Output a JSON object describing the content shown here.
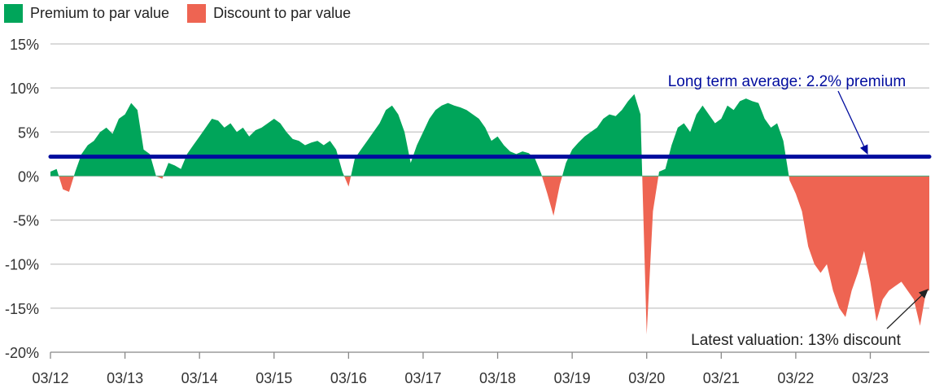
{
  "chart_data": {
    "type": "area",
    "legend": {
      "position": "top-left",
      "items": [
        {
          "label": "Premium to par value",
          "color": "#00A55A"
        },
        {
          "label": "Discount to par value",
          "color": "#EE6452"
        }
      ]
    },
    "ylim": [
      -20,
      15
    ],
    "yticks": [
      15,
      10,
      5,
      0,
      -5,
      -10,
      -15,
      -20
    ],
    "ytick_labels": [
      "15%",
      "10%",
      "5%",
      "0%",
      "-5%",
      "-10%",
      "-15%",
      "-20%"
    ],
    "xtick_labels": [
      "03/12",
      "03/13",
      "03/14",
      "03/15",
      "03/16",
      "03/17",
      "03/18",
      "03/19",
      "03/20",
      "03/21",
      "03/22",
      "03/23"
    ],
    "grid": true,
    "average": {
      "value": 2.2,
      "label": "Long term average: 2.2% premium",
      "color": "#000C9E"
    },
    "latest_annotation": "Latest valuation: 13% discount",
    "x": [
      "2012-03",
      "2012-04",
      "2012-05",
      "2012-06",
      "2012-07",
      "2012-08",
      "2012-09",
      "2012-10",
      "2012-11",
      "2012-12",
      "2013-01",
      "2013-02",
      "2013-03",
      "2013-04",
      "2013-05",
      "2013-06",
      "2013-07",
      "2013-08",
      "2013-09",
      "2013-10",
      "2013-11",
      "2013-12",
      "2014-01",
      "2014-02",
      "2014-03",
      "2014-04",
      "2014-05",
      "2014-06",
      "2014-07",
      "2014-08",
      "2014-09",
      "2014-10",
      "2014-11",
      "2014-12",
      "2015-01",
      "2015-02",
      "2015-03",
      "2015-04",
      "2015-05",
      "2015-06",
      "2015-07",
      "2015-08",
      "2015-09",
      "2015-10",
      "2015-11",
      "2015-12",
      "2016-01",
      "2016-02",
      "2016-03",
      "2016-04",
      "2016-05",
      "2016-06",
      "2016-07",
      "2016-08",
      "2016-09",
      "2016-10",
      "2016-11",
      "2016-12",
      "2017-01",
      "2017-02",
      "2017-03",
      "2017-04",
      "2017-05",
      "2017-06",
      "2017-07",
      "2017-08",
      "2017-09",
      "2017-10",
      "2017-11",
      "2017-12",
      "2018-01",
      "2018-02",
      "2018-03",
      "2018-04",
      "2018-05",
      "2018-06",
      "2018-07",
      "2018-08",
      "2018-09",
      "2018-10",
      "2018-11",
      "2018-12",
      "2019-01",
      "2019-02",
      "2019-03",
      "2019-04",
      "2019-05",
      "2019-06",
      "2019-07",
      "2019-08",
      "2019-09",
      "2019-10",
      "2019-11",
      "2019-12",
      "2020-01",
      "2020-02",
      "2020-03",
      "2020-04",
      "2020-05",
      "2020-06",
      "2020-07",
      "2020-08",
      "2020-09",
      "2020-10",
      "2020-11",
      "2020-12",
      "2021-01",
      "2021-02",
      "2021-03",
      "2021-04",
      "2021-05",
      "2021-06",
      "2021-07",
      "2021-08",
      "2021-09",
      "2021-10",
      "2021-11",
      "2021-12",
      "2022-01",
      "2022-02",
      "2022-03",
      "2022-04",
      "2022-05",
      "2022-06",
      "2022-07",
      "2022-08",
      "2022-09",
      "2022-10",
      "2022-11",
      "2022-12",
      "2023-01",
      "2023-02",
      "2023-03",
      "2023-04",
      "2023-05",
      "2023-06",
      "2023-07",
      "2023-08",
      "2023-09",
      "2023-10",
      "2023-11",
      "2023-12"
    ],
    "values": [
      0.5,
      0.8,
      -1.5,
      -1.8,
      0.5,
      2.5,
      3.5,
      4.0,
      5.0,
      5.5,
      4.8,
      6.5,
      7.0,
      8.3,
      7.5,
      3.0,
      2.5,
      0.0,
      -0.3,
      1.5,
      1.2,
      0.8,
      2.5,
      3.5,
      4.5,
      5.5,
      6.5,
      6.3,
      5.5,
      6.0,
      5.0,
      5.5,
      4.5,
      5.2,
      5.5,
      6.0,
      6.5,
      6.0,
      5.0,
      4.2,
      4.0,
      3.5,
      3.8,
      4.0,
      3.5,
      4.0,
      3.0,
      0.5,
      -1.2,
      2.0,
      3.0,
      4.0,
      5.0,
      6.0,
      7.5,
      8.0,
      7.0,
      5.0,
      1.5,
      3.5,
      5.0,
      6.5,
      7.5,
      8.0,
      8.3,
      8.0,
      7.8,
      7.5,
      7.0,
      6.5,
      5.5,
      4.0,
      4.5,
      3.5,
      2.8,
      2.5,
      2.8,
      2.6,
      2.0,
      0.3,
      -2.0,
      -4.5,
      -1.0,
      1.5,
      3.0,
      3.8,
      4.5,
      5.0,
      5.5,
      6.5,
      7.0,
      6.8,
      7.5,
      8.5,
      9.3,
      7.0,
      -18.0,
      -4.0,
      0.5,
      0.8,
      3.5,
      5.5,
      6.0,
      5.0,
      7.0,
      8.0,
      7.0,
      6.0,
      6.5,
      8.0,
      7.5,
      8.5,
      8.8,
      8.5,
      8.3,
      6.5,
      5.5,
      6.0,
      4.0,
      -0.5,
      -2.0,
      -4.0,
      -8.0,
      -10.0,
      -11.0,
      -10.0,
      -13.0,
      -15.0,
      -16.0,
      -13.0,
      -11.0,
      -8.5,
      -12.0,
      -16.5,
      -14.0,
      -13.0,
      -12.5,
      -12.0,
      -13.0,
      -14.0,
      -17.0,
      -13.0
    ]
  }
}
